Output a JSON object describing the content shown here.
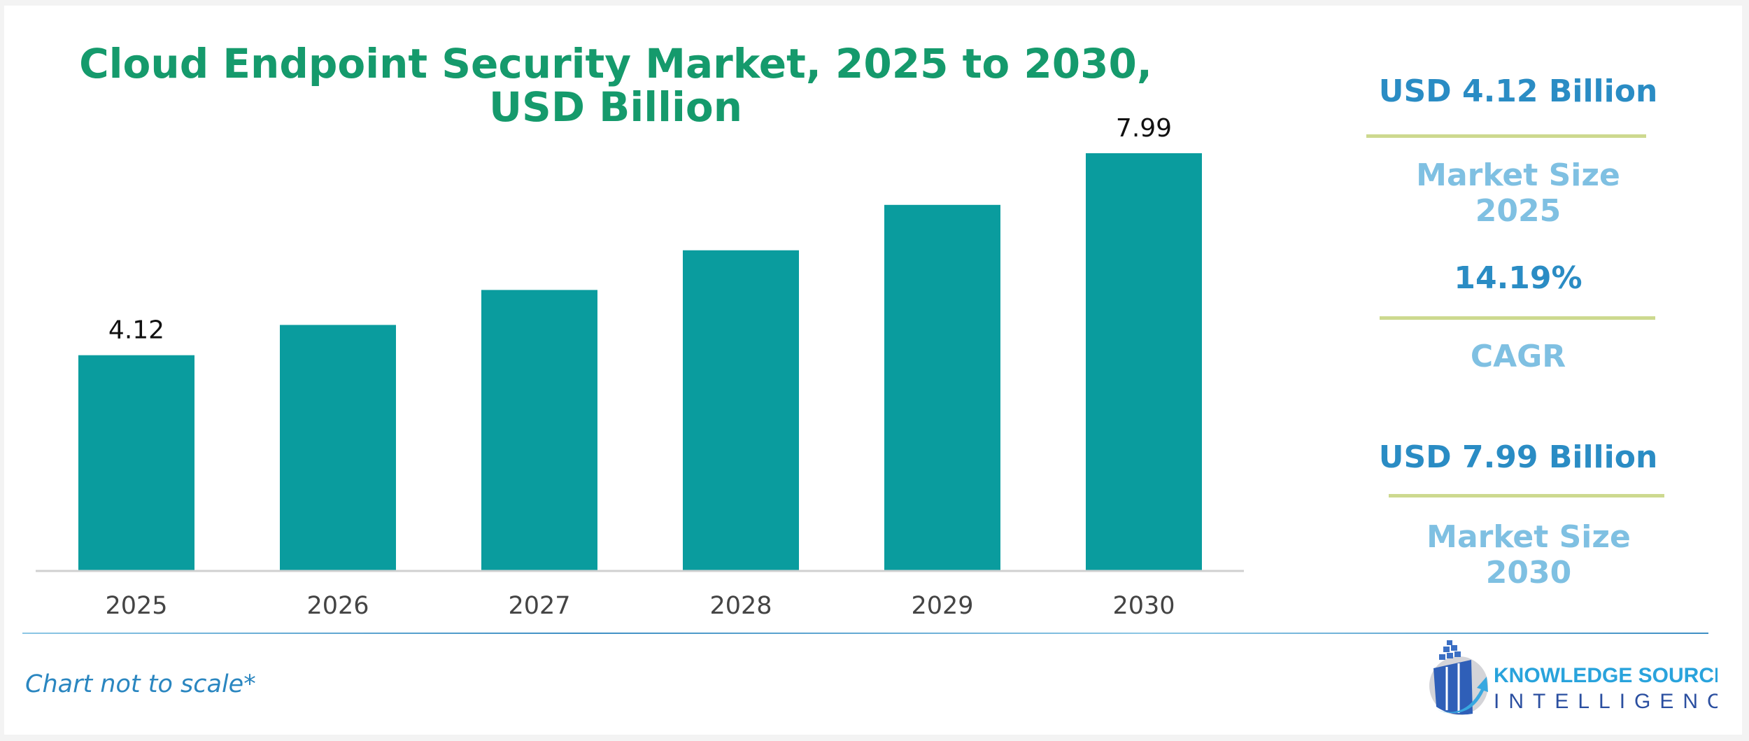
{
  "chart_data": {
    "type": "bar",
    "title": "Cloud Endpoint Security Market, 2025 to 2030, USD Billion",
    "categories": [
      "2025",
      "2026",
      "2027",
      "2028",
      "2029",
      "2030"
    ],
    "values": [
      4.12,
      4.7,
      5.37,
      6.13,
      7.0,
      7.99
    ],
    "data_labels": {
      "0": "4.12",
      "5": "7.99"
    },
    "ylim": [
      0,
      8.5
    ],
    "grid": false,
    "bar_color": "#0a9c9e"
  },
  "title_line1": "Cloud Endpoint Security Market, 2025 to 2030,",
  "title_line2": "USD Billion",
  "stats": [
    {
      "value": "USD 4.12 Billion",
      "label": "Market Size 2025"
    },
    {
      "value": "14.19%",
      "label": "CAGR"
    },
    {
      "value": "USD 7.99 Billion",
      "label": "Market Size 2030"
    }
  ],
  "note": "Chart not to scale*",
  "logo": {
    "line1": "KNOWLEDGE SOURCING",
    "line2": "INTELLIGENCE"
  },
  "colors": {
    "title": "#159a6c",
    "stat_value": "#2a8cc4",
    "stat_label": "#7fc0e2",
    "divider": "#cdd98f"
  }
}
